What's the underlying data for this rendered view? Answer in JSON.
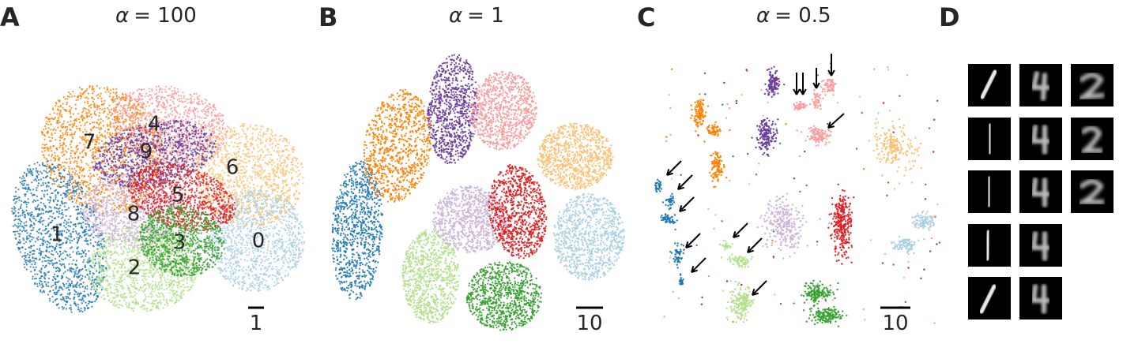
{
  "chart_data": [
    {
      "type": "scatter",
      "panel": "A",
      "title_symbol": "α",
      "title_value": "= 100",
      "scale_bar_label": "1",
      "colors": [
        "#a6cee3",
        "#1f78b4",
        "#b2df8a",
        "#33a02c",
        "#fb9a99",
        "#e31a1c",
        "#fdbf6f",
        "#ff7f00",
        "#cab2d6",
        "#6a3d9a"
      ],
      "cluster_labels": [
        "0",
        "1",
        "2",
        "3",
        "4",
        "5",
        "6",
        "7",
        "8",
        "9"
      ],
      "clusters": [
        {
          "label": "0",
          "color": "#a6cee3"
        },
        {
          "label": "1",
          "color": "#1f78b4"
        },
        {
          "label": "2",
          "color": "#b2df8a"
        },
        {
          "label": "3",
          "color": "#33a02c"
        },
        {
          "label": "4",
          "color": "#fb9a99"
        },
        {
          "label": "5",
          "color": "#e31a1c"
        },
        {
          "label": "6",
          "color": "#fdbf6f"
        },
        {
          "label": "7",
          "color": "#ff7f00"
        },
        {
          "label": "8",
          "color": "#cab2d6"
        },
        {
          "label": "9",
          "color": "#6a3d9a"
        }
      ]
    },
    {
      "type": "scatter",
      "panel": "B",
      "title_symbol": "α",
      "title_value": "= 1",
      "scale_bar_label": "10"
    },
    {
      "type": "scatter",
      "panel": "C",
      "title_symbol": "α",
      "title_value": "= 0.5",
      "scale_bar_label": "10"
    },
    {
      "type": "image_grid",
      "panel": "D",
      "columns": [
        {
          "digit": "1",
          "count": 5
        },
        {
          "digit": "4",
          "count": 5
        },
        {
          "digit": "2",
          "count": 3
        }
      ]
    }
  ]
}
